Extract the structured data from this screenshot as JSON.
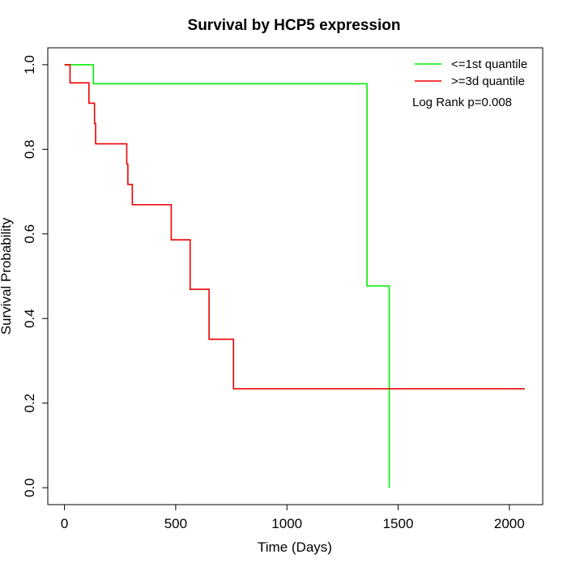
{
  "chart_data": {
    "type": "line",
    "title": "Survival by HCP5 expression",
    "xlabel": "Time (Days)",
    "ylabel": "Survival Probability",
    "xlim": [
      -75,
      2150
    ],
    "ylim": [
      -0.04,
      1.04
    ],
    "x_ticks": [
      0,
      500,
      1000,
      1500,
      2000
    ],
    "y_ticks": [
      0.0,
      0.2,
      0.4,
      0.6,
      0.8,
      1.0
    ],
    "x_tick_labels": [
      "0",
      "500",
      "1000",
      "1500",
      "2000"
    ],
    "y_tick_labels": [
      "0.0",
      "0.2",
      "0.4",
      "0.6",
      "0.8",
      "1.0"
    ],
    "grid": false,
    "legend_position": "top-right",
    "series": [
      {
        "name": "<=1st quantile",
        "color": "#00ee00",
        "step": "post",
        "x": [
          0,
          130,
          1360,
          1460,
          1460
        ],
        "y": [
          1.0,
          0.955,
          0.477,
          0.477,
          0.0
        ]
      },
      {
        "name": ">=3d quantile",
        "color": "#ee0000",
        "step": "post",
        "x": [
          0,
          25,
          110,
          135,
          140,
          280,
          285,
          305,
          480,
          565,
          650,
          760,
          2070
        ],
        "y": [
          1.0,
          0.957,
          0.909,
          0.861,
          0.813,
          0.765,
          0.717,
          0.669,
          0.586,
          0.469,
          0.351,
          0.234,
          0.234
        ]
      }
    ],
    "annotations": [
      "Log Rank p=0.008"
    ]
  }
}
